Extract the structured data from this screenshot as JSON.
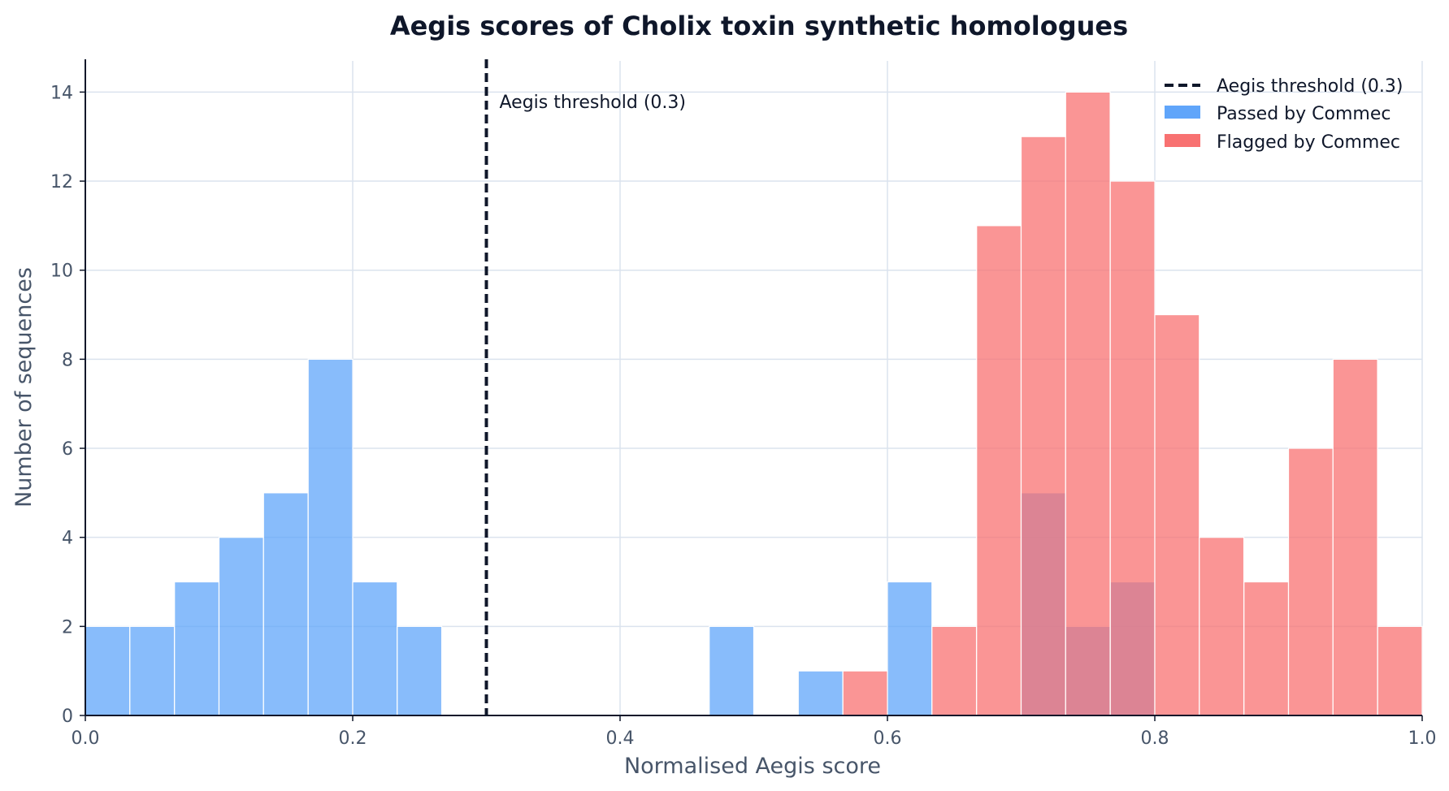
{
  "chart_data": {
    "type": "bar",
    "title": "Aegis scores of Cholix toxin synthetic homologues",
    "xlabel": "Normalised Aegis score",
    "ylabel": "Number of sequences",
    "xlim": [
      0,
      1
    ],
    "ylim": [
      0,
      14.7
    ],
    "xticks": [
      0.0,
      0.2,
      0.4,
      0.6,
      0.8,
      1.0
    ],
    "xtick_labels": [
      "0.0",
      "0.2",
      "0.4",
      "0.6",
      "0.8",
      "1.0"
    ],
    "yticks": [
      0,
      2,
      4,
      6,
      8,
      10,
      12,
      14
    ],
    "ytick_labels": [
      "0",
      "2",
      "4",
      "6",
      "8",
      "10",
      "12",
      "14"
    ],
    "grid": true,
    "bin_width": 0.0333,
    "bin_starts": [
      0.0,
      0.0333,
      0.0667,
      0.1,
      0.1333,
      0.1667,
      0.2,
      0.2333,
      0.2667,
      0.3,
      0.3333,
      0.3667,
      0.4,
      0.4333,
      0.4667,
      0.5,
      0.5333,
      0.5667,
      0.6,
      0.6333,
      0.6667,
      0.7,
      0.7333,
      0.7667,
      0.8,
      0.8333,
      0.8667,
      0.9,
      0.9333,
      0.9667
    ],
    "series": [
      {
        "name": "Passed by Commec",
        "color": "#60a5fa",
        "values": [
          2,
          2,
          3,
          4,
          5,
          8,
          3,
          2,
          0,
          0,
          0,
          0,
          0,
          0,
          2,
          0,
          1,
          0,
          3,
          0,
          0,
          5,
          2,
          3,
          0,
          0,
          0,
          0,
          0,
          0
        ]
      },
      {
        "name": "Flagged by Commec",
        "color": "#f87171",
        "values": [
          0,
          0,
          0,
          0,
          0,
          0,
          0,
          0,
          0,
          0,
          0,
          0,
          0,
          0,
          0,
          0,
          0,
          1,
          0,
          2,
          11,
          13,
          14,
          12,
          9,
          4,
          3,
          6,
          8,
          2
        ]
      }
    ],
    "threshold": {
      "value": 0.3,
      "legend_label": "Aegis threshold (0.3)",
      "annotation": "Aegis threshold (0.3)",
      "color": "#0f172a"
    },
    "legend": {
      "placement": "top-right",
      "entries": [
        "Aegis threshold (0.3)",
        "Passed by Commec",
        "Flagged by Commec"
      ]
    }
  }
}
